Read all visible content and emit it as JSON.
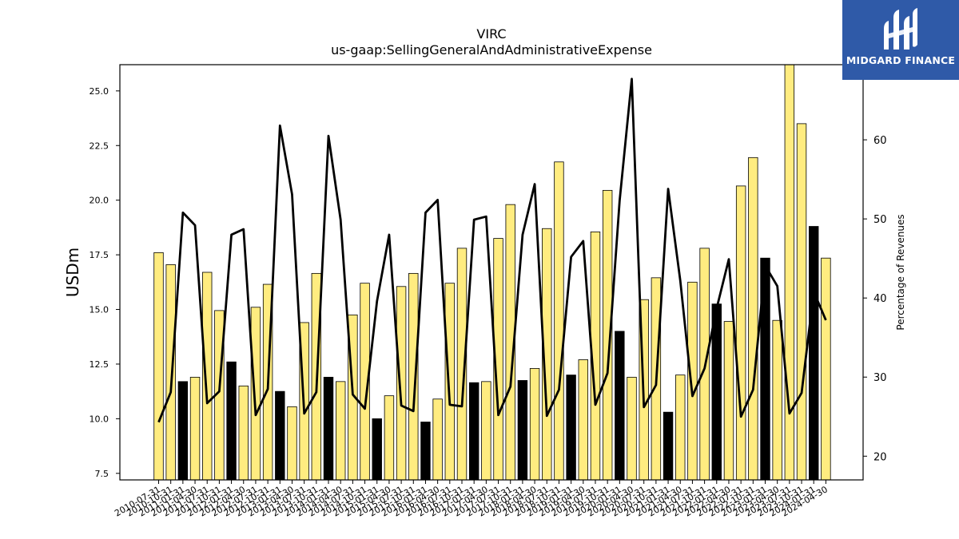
{
  "header": {
    "title": "VIRC",
    "subtitle": "us-gaap:SellingGeneralAndAdministrativeExpense"
  },
  "logo": {
    "text": "MIDGARD FINANCE",
    "icon": "midgard-logo-icon",
    "background": "#2f5aa8"
  },
  "colors": {
    "bar_normal": "#ffec80",
    "bar_highlight": "#000000",
    "line": "#000000"
  },
  "chart_data": {
    "type": "bar",
    "title": "VIRC",
    "subtitle": "us-gaap:SellingGeneralAndAdministrativeExpense",
    "ylabel": "USDm",
    "y2label": "Percentage of Revenues",
    "ylim": [
      7.2,
      26.2
    ],
    "y2lim": [
      17,
      69.5
    ],
    "yticks": [
      7.5,
      10.0,
      12.5,
      15.0,
      17.5,
      20.0,
      22.5,
      25.0
    ],
    "yticklabels": [
      "7.5",
      "10.0",
      "12.5",
      "15.0",
      "17.5",
      "20.0",
      "22.5",
      "25.0"
    ],
    "y2ticks": [
      20,
      30,
      40,
      50,
      60
    ],
    "y2ticklabels": [
      "20",
      "30",
      "40",
      "50",
      "60"
    ],
    "categories": [
      "2010-07-31",
      "2010-10-31",
      "2011-01-31",
      "2011-04-30",
      "2011-07-31",
      "2011-10-31",
      "2012-01-31",
      "2012-04-30",
      "2012-07-31",
      "2012-10-31",
      "2013-01-31",
      "2013-04-30",
      "2013-07-31",
      "2013-10-31",
      "2014-01-31",
      "2014-04-30",
      "2014-07-31",
      "2014-10-31",
      "2015-01-31",
      "2015-04-30",
      "2015-07-31",
      "2015-10-31",
      "2016-01-31",
      "2016-04-30",
      "2016-07-31",
      "2016-10-31",
      "2017-01-31",
      "2017-04-30",
      "2017-07-31",
      "2017-10-31",
      "2018-01-31",
      "2018-04-30",
      "2018-07-31",
      "2018-10-31",
      "2019-01-31",
      "2019-04-30",
      "2019-07-31",
      "2019-10-31",
      "2020-01-31",
      "2020-04-30",
      "2020-07-31",
      "2020-10-31",
      "2021-01-31",
      "2021-04-30",
      "2021-07-31",
      "2021-10-31",
      "2022-01-31",
      "2022-04-30",
      "2022-07-31",
      "2022-10-31",
      "2023-01-31",
      "2023-04-30",
      "2023-07-31",
      "2023-10-31",
      "2024-01-31",
      "2024-04-30"
    ],
    "series": [
      {
        "type": "bar",
        "values": [
          17.6,
          17.05,
          11.7,
          11.9,
          16.7,
          14.95,
          12.6,
          11.5,
          15.1,
          16.15,
          11.25,
          10.55,
          14.4,
          16.65,
          11.9,
          11.7,
          14.75,
          16.2,
          10.0,
          11.05,
          16.05,
          16.65,
          9.85,
          10.9,
          16.2,
          17.8,
          11.65,
          11.7,
          18.25,
          19.8,
          11.75,
          12.3,
          18.7,
          21.75,
          12.0,
          12.7,
          18.55,
          20.45,
          14.0,
          11.9,
          15.45,
          16.45,
          10.3,
          12.0,
          16.25,
          17.8,
          15.25,
          14.45,
          20.65,
          21.95,
          17.35,
          14.5,
          26.3,
          23.5,
          18.8,
          17.35
        ],
        "highlight": [
          false,
          false,
          true,
          false,
          false,
          false,
          true,
          false,
          false,
          false,
          true,
          false,
          false,
          false,
          true,
          false,
          false,
          false,
          true,
          false,
          false,
          false,
          true,
          false,
          false,
          false,
          true,
          false,
          false,
          false,
          true,
          false,
          false,
          false,
          true,
          false,
          false,
          false,
          true,
          false,
          false,
          false,
          true,
          false,
          false,
          false,
          true,
          false,
          false,
          false,
          true,
          false,
          false,
          false,
          true,
          false
        ]
      },
      {
        "type": "line",
        "axis": "right",
        "values": [
          24.3,
          28.1,
          50.8,
          49.2,
          26.7,
          28.2,
          48.0,
          48.7,
          25.2,
          28.5,
          61.8,
          53.1,
          25.4,
          28.1,
          60.5,
          49.9,
          27.8,
          26.0,
          39.6,
          48.0,
          26.4,
          25.7,
          50.8,
          52.4,
          26.5,
          26.3,
          49.9,
          50.3,
          25.2,
          28.8,
          48.0,
          54.4,
          25.1,
          28.4,
          45.2,
          47.2,
          26.5,
          30.5,
          52.3,
          67.7,
          26.2,
          29.0,
          53.8,
          42.2,
          27.6,
          31.1,
          38.7,
          44.9,
          25.0,
          28.4,
          44.1,
          41.5,
          25.4,
          28.0,
          40.8,
          37.2
        ]
      }
    ]
  }
}
